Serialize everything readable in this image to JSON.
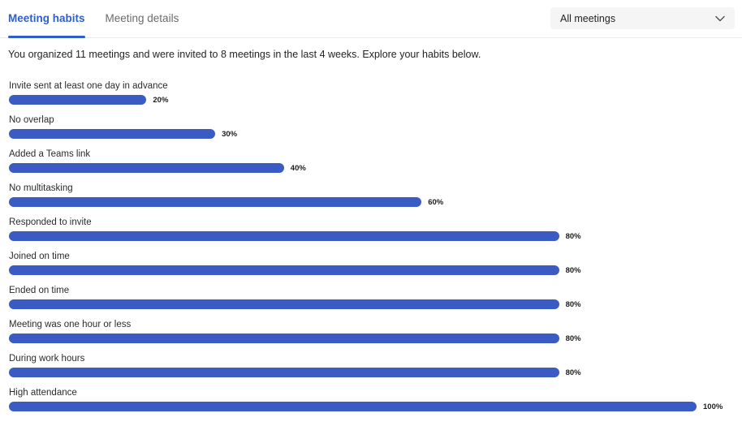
{
  "header": {
    "tabs": [
      {
        "label": "Meeting habits",
        "active": true
      },
      {
        "label": "Meeting details",
        "active": false
      }
    ],
    "filter_dropdown": {
      "value": "All meetings",
      "icon": "chevron-down-icon"
    }
  },
  "summary_text": "You organized 11 meetings and were invited to 8 meetings in the last 4 weeks. Explore your habits below.",
  "chart_data": {
    "type": "bar",
    "orientation": "horizontal",
    "title": "",
    "categories": [
      "Invite sent at least one day in advance",
      "No overlap",
      "Added a Teams link",
      "No multitasking",
      "Responded to invite",
      "Joined on time",
      "Ended on time",
      "Meeting was one hour or less",
      "During work hours",
      "High attendance"
    ],
    "values": [
      20,
      30,
      40,
      60,
      80,
      80,
      80,
      80,
      80,
      100
    ],
    "value_labels": [
      "20%",
      "30%",
      "40%",
      "60%",
      "80%",
      "80%",
      "80%",
      "80%",
      "80%",
      "100%"
    ],
    "value_suffix": "%",
    "xlim": [
      0,
      100
    ],
    "grid": false,
    "legend": false,
    "bar_color": "#3B5BC4"
  },
  "colors": {
    "accent": "#2D5FC8",
    "bar": "#3B5BC4",
    "inactive_tab": "#6b6b6b",
    "dropdown_bg": "#f5f5f5",
    "separator": "#e8e8e8",
    "text": "#262626"
  }
}
